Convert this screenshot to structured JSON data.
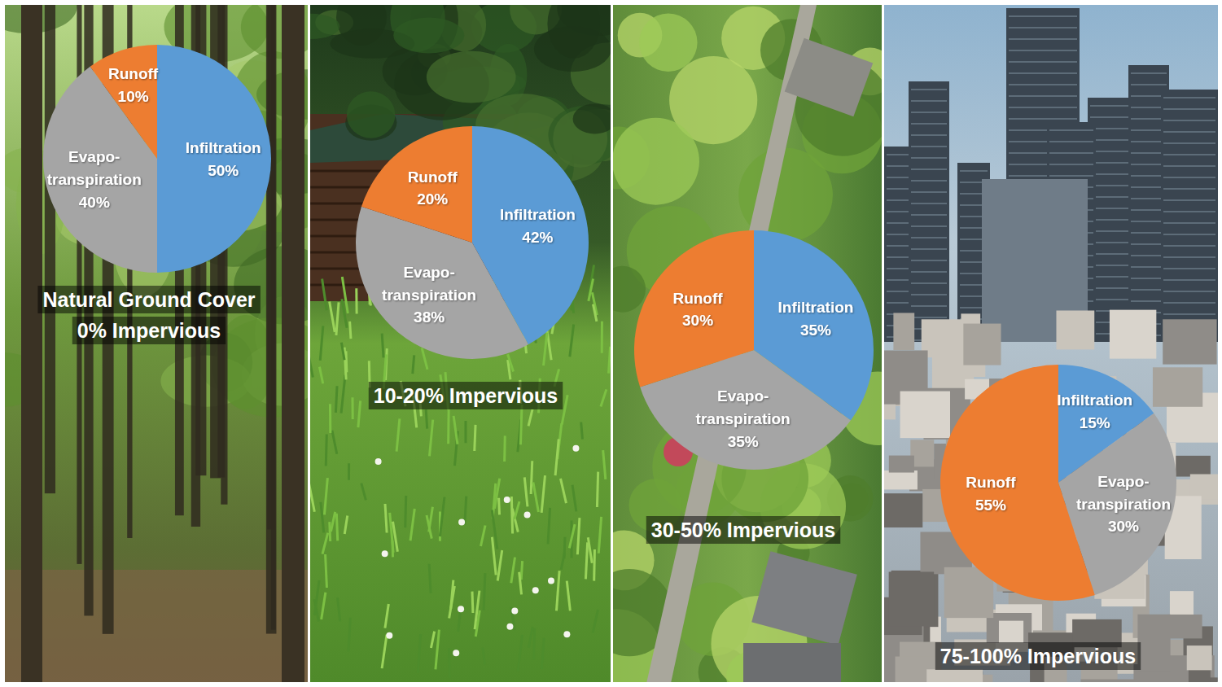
{
  "chart_data": [
    {
      "type": "pie",
      "title": "Natural Ground Cover",
      "subtitle": "0% Impervious",
      "categories": [
        "Infiltration",
        "Evapo-transpiration",
        "Runoff"
      ],
      "values": [
        50,
        40,
        10
      ],
      "value_labels": [
        "50%",
        "40%",
        "10%"
      ],
      "colors": [
        "#5b9bd5",
        "#a5a5a5",
        "#ed7d31"
      ],
      "data_labels": true
    },
    {
      "type": "pie",
      "title": "10-20% Impervious",
      "categories": [
        "Infiltration",
        "Evapo-transpiration",
        "Runoff"
      ],
      "values": [
        42,
        38,
        20
      ],
      "value_labels": [
        "42%",
        "38%",
        "20%"
      ],
      "colors": [
        "#5b9bd5",
        "#a5a5a5",
        "#ed7d31"
      ],
      "data_labels": true
    },
    {
      "type": "pie",
      "title": "30-50% Impervious",
      "categories": [
        "Infiltration",
        "Evapo-transpiration",
        "Runoff"
      ],
      "values": [
        35,
        35,
        30
      ],
      "value_labels": [
        "35%",
        "35%",
        "30%"
      ],
      "colors": [
        "#5b9bd5",
        "#a5a5a5",
        "#ed7d31"
      ],
      "data_labels": true
    },
    {
      "type": "pie",
      "title": "75-100% Impervious",
      "categories": [
        "Infiltration",
        "Evapo-transpiration",
        "Runoff"
      ],
      "values": [
        15,
        30,
        55
      ],
      "value_labels": [
        "15%",
        "30%",
        "55%"
      ],
      "colors": [
        "#5b9bd5",
        "#a5a5a5",
        "#ed7d31"
      ],
      "data_labels": true
    }
  ]
}
